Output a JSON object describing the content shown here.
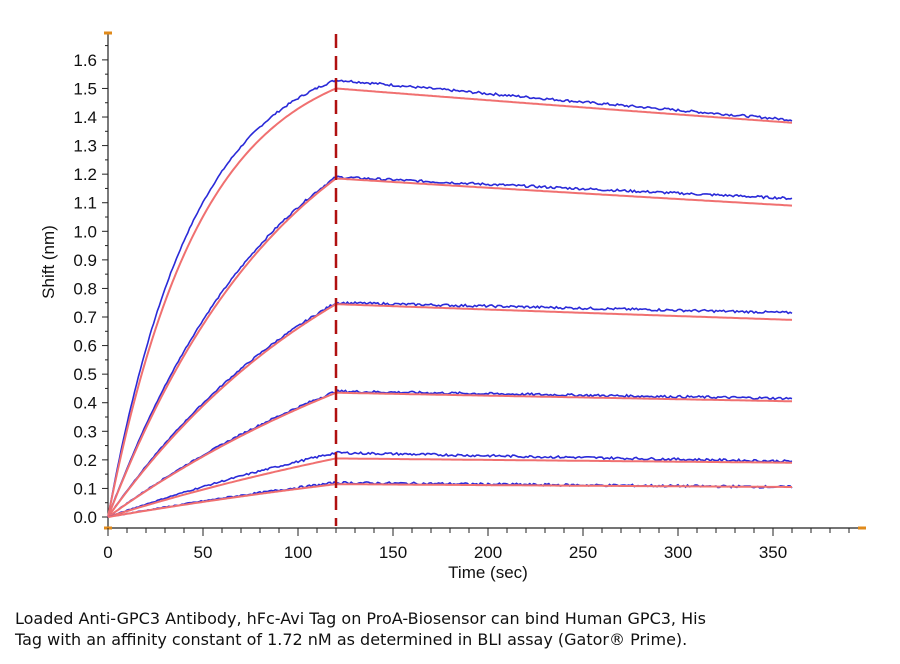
{
  "chart_data": {
    "type": "line",
    "xlabel": "Time (sec)",
    "ylabel": "Shift (nm)",
    "xlim": [
      0,
      395
    ],
    "ylim": [
      0,
      1.67
    ],
    "xticks": [
      0,
      50,
      100,
      150,
      200,
      250,
      300,
      350
    ],
    "yticks": [
      0.0,
      0.1,
      0.2,
      0.3,
      0.4,
      0.5,
      0.6,
      0.7,
      0.8,
      0.9,
      1.0,
      1.1,
      1.2,
      1.3,
      1.4,
      1.5,
      1.6
    ],
    "association_end": 120,
    "x_end": 360,
    "grid": false,
    "colors": {
      "measured": "#2a2ad8",
      "fit": "#f07070",
      "marker": "#b01010",
      "axis_tick": "#e08a1a"
    },
    "curves": [
      {
        "peak_measured": 1.53,
        "peak_fit": 1.5,
        "end_measured": 1.39,
        "end_fit": 1.38,
        "shape": 1.0
      },
      {
        "peak_measured": 1.19,
        "peak_fit": 1.185,
        "end_measured": 1.115,
        "end_fit": 1.09,
        "shape": 0.45
      },
      {
        "peak_measured": 0.75,
        "peak_fit": 0.745,
        "end_measured": 0.715,
        "end_fit": 0.69,
        "shape": 0.28
      },
      {
        "peak_measured": 0.44,
        "peak_fit": 0.435,
        "end_measured": 0.415,
        "end_fit": 0.405,
        "shape": 0.15
      },
      {
        "peak_measured": 0.225,
        "peak_fit": 0.205,
        "end_measured": 0.195,
        "end_fit": 0.19,
        "shape": 0.08
      },
      {
        "peak_measured": 0.12,
        "peak_fit": 0.115,
        "end_measured": 0.105,
        "end_fit": 0.105,
        "shape": 0.05
      }
    ]
  },
  "caption": {
    "line1": "Loaded Anti-GPC3 Antibody, hFc-Avi Tag on ProA-Biosensor can bind Human GPC3, His",
    "line2": "Tag with an affinity constant of 1.72 nM as determined in BLI assay (Gator® Prime)."
  }
}
